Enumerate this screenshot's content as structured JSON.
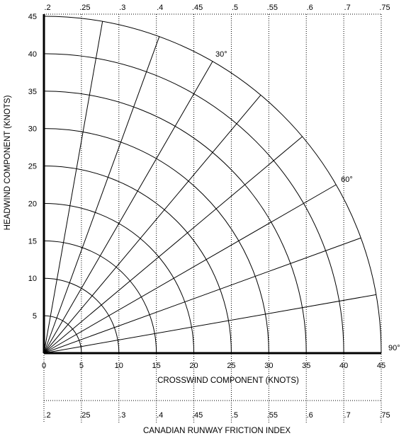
{
  "chart_data": {
    "type": "polar-grid",
    "xlabel": "CROSSWIND COMPONENT (KNOTS)",
    "ylabel": "HEADWIND COMPONENT (KNOTS)",
    "friction_label": "CANADIAN RUNWAY FRICTION INDEX",
    "x_ticks": [
      "0",
      "5",
      "10",
      "15",
      "20",
      "25",
      "30",
      "35",
      "40",
      "45"
    ],
    "y_ticks": [
      "5",
      "10",
      "15",
      "20",
      "25",
      "30",
      "35",
      "40",
      "45"
    ],
    "friction_ticks": [
      ".2",
      ".25",
      ".3",
      ".4",
      ".45",
      ".5",
      ".55",
      ".6",
      ".7",
      ".75"
    ],
    "radii_knots": [
      5,
      10,
      15,
      20,
      25,
      30,
      35,
      40,
      45
    ],
    "ray_angles_deg": [
      10,
      20,
      30,
      40,
      50,
      60,
      70,
      80
    ],
    "angle_labels": [
      {
        "deg": 30,
        "text": "30°"
      },
      {
        "deg": 60,
        "text": "60°"
      },
      {
        "deg": 90,
        "text": "90°"
      }
    ],
    "xlim": [
      0,
      45
    ],
    "ylim": [
      0,
      45
    ],
    "colors": {
      "lines": "#000000",
      "grid": "#000000"
    }
  }
}
